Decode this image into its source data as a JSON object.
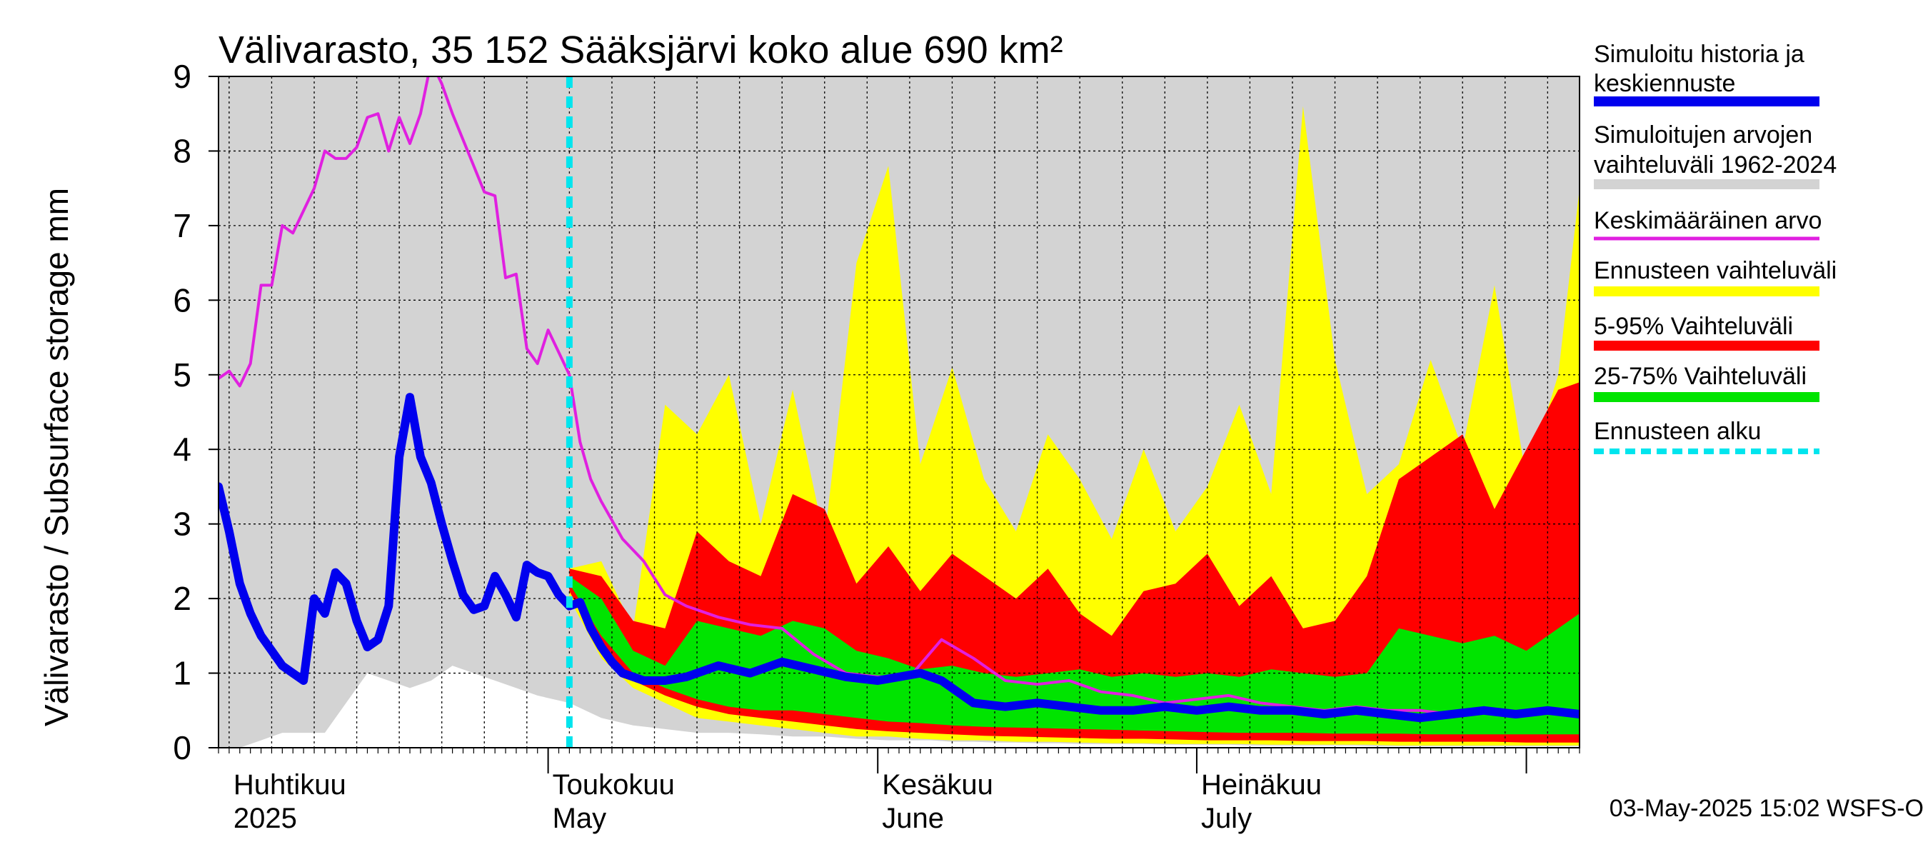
{
  "chart_data": {
    "type": "area",
    "title": "Välivarasto, 35 152 Sääksjärvi koko alue 690 km²",
    "ylabel": "Välivarasto / Subsurface storage  mm",
    "ylim": [
      0,
      9
    ],
    "yticks": [
      "0",
      "1",
      "2",
      "3",
      "4",
      "5",
      "6",
      "7",
      "8",
      "9"
    ],
    "xlim": [
      "2025-03-31",
      "2025-08-06"
    ],
    "grid": true,
    "months": [
      {
        "label1": "Huhtikuu",
        "label2": "2025",
        "start": "2025-04-01"
      },
      {
        "label1": "Toukokuu",
        "label2": "May",
        "start": "2025-05-01"
      },
      {
        "label1": "Kesäkuu",
        "label2": "June",
        "start": "2025-06-01"
      },
      {
        "label1": "Heinäkuu",
        "label2": "July",
        "start": "2025-07-01"
      }
    ],
    "month_ends": [
      "2025-05-01",
      "2025-06-01",
      "2025-07-01",
      "2025-08-01"
    ],
    "forecast_start": "2025-05-03",
    "series": [
      {
        "name": "Simuloitujen arvojen vaihteluväli 1962-2024",
        "color": "#d3d3d3",
        "kind": "band",
        "x": [
          "2025-03-31",
          "2025-04-02",
          "2025-04-04",
          "2025-04-06",
          "2025-04-08",
          "2025-04-10",
          "2025-04-12",
          "2025-04-14",
          "2025-04-16",
          "2025-04-18",
          "2025-04-20",
          "2025-04-22",
          "2025-04-24",
          "2025-04-26",
          "2025-04-28",
          "2025-04-30",
          "2025-05-03",
          "2025-05-06",
          "2025-05-09",
          "2025-05-12",
          "2025-05-15",
          "2025-05-18",
          "2025-05-21",
          "2025-05-24",
          "2025-05-27",
          "2025-05-30",
          "2025-06-02",
          "2025-06-04",
          "2025-06-06",
          "2025-06-08",
          "2025-06-10",
          "2025-06-12",
          "2025-06-14",
          "2025-06-16",
          "2025-06-18",
          "2025-06-20",
          "2025-06-22",
          "2025-06-24",
          "2025-06-26",
          "2025-06-28",
          "2025-06-30",
          "2025-07-02",
          "2025-07-04",
          "2025-07-06",
          "2025-07-08",
          "2025-07-10",
          "2025-07-12",
          "2025-07-14",
          "2025-07-16",
          "2025-07-18",
          "2025-07-20",
          "2025-07-22",
          "2025-07-24",
          "2025-07-26",
          "2025-07-28",
          "2025-07-30",
          "2025-08-01",
          "2025-08-03",
          "2025-08-05",
          "2025-08-06"
        ],
        "upper": [
          9,
          9,
          9,
          9,
          9,
          9,
          9,
          9,
          9,
          9,
          9,
          9,
          9,
          9,
          9,
          9,
          9,
          9,
          9,
          9,
          9,
          9,
          9,
          9,
          9,
          9,
          9,
          9,
          9,
          9,
          9,
          9,
          9,
          9,
          9,
          9,
          9,
          9,
          9,
          9,
          9,
          9,
          9,
          9,
          9,
          9,
          9,
          9,
          9,
          9,
          9,
          9,
          9,
          9,
          9,
          9,
          9,
          9,
          9,
          9
        ],
        "lower": [
          0.0,
          0.0,
          0.1,
          0.2,
          0.2,
          0.2,
          0.6,
          1.0,
          0.9,
          0.8,
          0.9,
          1.1,
          1.0,
          0.9,
          0.8,
          0.7,
          0.6,
          0.4,
          0.3,
          0.25,
          0.2,
          0.2,
          0.18,
          0.15,
          0.15,
          0.12,
          0.1,
          0.1,
          0.1,
          0.08,
          0.08,
          0.07,
          0.07,
          0.06,
          0.06,
          0.05,
          0.05,
          0.05,
          0.05,
          0.04,
          0.04,
          0.04,
          0.04,
          0.03,
          0.03,
          0.03,
          0.03,
          0.03,
          0.03,
          0.02,
          0.02,
          0.02,
          0.02,
          0.02,
          0.02,
          0.02,
          0.02,
          0.02,
          0.02,
          0.02
        ]
      },
      {
        "name": "Ennusteen vaihteluväli",
        "color": "#ffff00",
        "kind": "band",
        "x": [
          "2025-05-03",
          "2025-05-06",
          "2025-05-09",
          "2025-05-12",
          "2025-05-15",
          "2025-05-18",
          "2025-05-21",
          "2025-05-24",
          "2025-05-27",
          "2025-05-30",
          "2025-06-02",
          "2025-06-05",
          "2025-06-08",
          "2025-06-11",
          "2025-06-14",
          "2025-06-17",
          "2025-06-20",
          "2025-06-23",
          "2025-06-26",
          "2025-06-29",
          "2025-07-02",
          "2025-07-05",
          "2025-07-08",
          "2025-07-11",
          "2025-07-14",
          "2025-07-17",
          "2025-07-20",
          "2025-07-23",
          "2025-07-26",
          "2025-07-29",
          "2025-08-01",
          "2025-08-04",
          "2025-08-06"
        ],
        "upper": [
          2.4,
          2.5,
          1.6,
          4.6,
          4.2,
          5.0,
          3.0,
          4.8,
          2.8,
          6.5,
          7.8,
          3.8,
          5.1,
          3.6,
          2.9,
          4.2,
          3.6,
          2.8,
          4.0,
          2.9,
          3.5,
          4.6,
          3.4,
          8.6,
          5.2,
          3.4,
          3.8,
          5.2,
          4.0,
          6.2,
          3.6,
          5.0,
          7.5
        ],
        "lower": [
          2.0,
          1.2,
          0.8,
          0.6,
          0.4,
          0.35,
          0.3,
          0.25,
          0.2,
          0.15,
          0.15,
          0.12,
          0.1,
          0.1,
          0.08,
          0.08,
          0.07,
          0.06,
          0.06,
          0.05,
          0.05,
          0.05,
          0.04,
          0.04,
          0.04,
          0.04,
          0.03,
          0.03,
          0.03,
          0.03,
          0.03,
          0.03,
          0.03
        ]
      },
      {
        "name": "5-95% Vaihteluväli",
        "color": "#ff0000",
        "kind": "band",
        "x": [
          "2025-05-03",
          "2025-05-06",
          "2025-05-09",
          "2025-05-12",
          "2025-05-15",
          "2025-05-18",
          "2025-05-21",
          "2025-05-24",
          "2025-05-27",
          "2025-05-30",
          "2025-06-02",
          "2025-06-05",
          "2025-06-08",
          "2025-06-11",
          "2025-06-14",
          "2025-06-17",
          "2025-06-20",
          "2025-06-23",
          "2025-06-26",
          "2025-06-29",
          "2025-07-02",
          "2025-07-05",
          "2025-07-08",
          "2025-07-11",
          "2025-07-14",
          "2025-07-17",
          "2025-07-20",
          "2025-07-23",
          "2025-07-26",
          "2025-07-29",
          "2025-08-01",
          "2025-08-04",
          "2025-08-06"
        ],
        "upper": [
          2.4,
          2.3,
          1.7,
          1.6,
          2.9,
          2.5,
          2.3,
          3.4,
          3.2,
          2.2,
          2.7,
          2.1,
          2.6,
          2.3,
          2.0,
          2.4,
          1.8,
          1.5,
          2.1,
          2.2,
          2.6,
          1.9,
          2.3,
          1.6,
          1.7,
          2.3,
          3.6,
          3.9,
          4.2,
          3.2,
          4.0,
          4.8,
          4.9
        ],
        "lower": [
          2.1,
          1.3,
          0.9,
          0.7,
          0.55,
          0.45,
          0.4,
          0.35,
          0.3,
          0.25,
          0.22,
          0.2,
          0.18,
          0.16,
          0.15,
          0.14,
          0.13,
          0.12,
          0.12,
          0.11,
          0.1,
          0.1,
          0.1,
          0.09,
          0.09,
          0.09,
          0.08,
          0.08,
          0.08,
          0.08,
          0.07,
          0.07,
          0.07
        ]
      },
      {
        "name": "25-75% Vaihteluväli",
        "color": "#00e400",
        "kind": "band",
        "x": [
          "2025-05-03",
          "2025-05-06",
          "2025-05-09",
          "2025-05-12",
          "2025-05-15",
          "2025-05-18",
          "2025-05-21",
          "2025-05-24",
          "2025-05-27",
          "2025-05-30",
          "2025-06-02",
          "2025-06-05",
          "2025-06-08",
          "2025-06-11",
          "2025-06-14",
          "2025-06-17",
          "2025-06-20",
          "2025-06-23",
          "2025-06-26",
          "2025-06-29",
          "2025-07-02",
          "2025-07-05",
          "2025-07-08",
          "2025-07-11",
          "2025-07-14",
          "2025-07-17",
          "2025-07-20",
          "2025-07-23",
          "2025-07-26",
          "2025-07-29",
          "2025-08-01",
          "2025-08-04",
          "2025-08-06"
        ],
        "upper": [
          2.3,
          2.0,
          1.3,
          1.1,
          1.7,
          1.6,
          1.5,
          1.7,
          1.6,
          1.3,
          1.2,
          1.05,
          1.1,
          1.0,
          0.95,
          1.0,
          1.05,
          0.95,
          1.0,
          0.95,
          1.0,
          0.95,
          1.05,
          1.0,
          0.95,
          1.0,
          1.6,
          1.5,
          1.4,
          1.5,
          1.3,
          1.6,
          1.8
        ],
        "lower": [
          2.2,
          1.5,
          1.0,
          0.8,
          0.65,
          0.55,
          0.5,
          0.5,
          0.45,
          0.4,
          0.35,
          0.33,
          0.3,
          0.28,
          0.27,
          0.26,
          0.25,
          0.24,
          0.23,
          0.22,
          0.21,
          0.2,
          0.2,
          0.2,
          0.19,
          0.19,
          0.19,
          0.18,
          0.18,
          0.18,
          0.18,
          0.18,
          0.18
        ]
      },
      {
        "name": "Keskimääräinen arvo",
        "color": "#e020e0",
        "kind": "line",
        "x": [
          "2025-03-31",
          "2025-04-01",
          "2025-04-02",
          "2025-04-03",
          "2025-04-04",
          "2025-04-05",
          "2025-04-06",
          "2025-04-07",
          "2025-04-08",
          "2025-04-09",
          "2025-04-10",
          "2025-04-11",
          "2025-04-12",
          "2025-04-13",
          "2025-04-14",
          "2025-04-15",
          "2025-04-16",
          "2025-04-17",
          "2025-04-18",
          "2025-04-19",
          "2025-04-20",
          "2025-04-21",
          "2025-04-22",
          "2025-04-23",
          "2025-04-24",
          "2025-04-25",
          "2025-04-26",
          "2025-04-27",
          "2025-04-28",
          "2025-04-29",
          "2025-04-30",
          "2025-05-01",
          "2025-05-02",
          "2025-05-03",
          "2025-05-04",
          "2025-05-05",
          "2025-05-06",
          "2025-05-08",
          "2025-05-10",
          "2025-05-12",
          "2025-05-14",
          "2025-05-17",
          "2025-05-20",
          "2025-05-23",
          "2025-05-26",
          "2025-05-29",
          "2025-06-01",
          "2025-06-04",
          "2025-06-07",
          "2025-06-10",
          "2025-06-13",
          "2025-06-16",
          "2025-06-19",
          "2025-06-22",
          "2025-06-25",
          "2025-06-28",
          "2025-07-01",
          "2025-07-04",
          "2025-07-07",
          "2025-07-10",
          "2025-07-13",
          "2025-07-16",
          "2025-07-19",
          "2025-07-22",
          "2025-07-25",
          "2025-07-28",
          "2025-07-31",
          "2025-08-03",
          "2025-08-06"
        ],
        "values": [
          4.95,
          5.05,
          4.85,
          5.15,
          6.2,
          6.2,
          7.0,
          6.9,
          7.2,
          7.5,
          8.0,
          7.9,
          7.9,
          8.05,
          8.45,
          8.5,
          8.0,
          8.45,
          8.1,
          8.5,
          9.2,
          8.9,
          8.5,
          8.15,
          7.8,
          7.45,
          7.4,
          6.3,
          6.35,
          5.35,
          5.15,
          5.6,
          5.3,
          5.0,
          4.1,
          3.6,
          3.3,
          2.8,
          2.5,
          2.05,
          1.9,
          1.75,
          1.65,
          1.6,
          1.25,
          1.0,
          0.95,
          0.95,
          1.45,
          1.2,
          0.9,
          0.85,
          0.9,
          0.75,
          0.7,
          0.6,
          0.65,
          0.7,
          0.6,
          0.55,
          0.5,
          0.55,
          0.5,
          0.5,
          0.45,
          0.5,
          0.45,
          0.5,
          0.45
        ]
      },
      {
        "name": "Simuloitu historia ja keskiennuste",
        "color": "#0000ee",
        "kind": "line",
        "x": [
          "2025-03-31",
          "2025-04-01",
          "2025-04-02",
          "2025-04-03",
          "2025-04-04",
          "2025-04-05",
          "2025-04-06",
          "2025-04-07",
          "2025-04-08",
          "2025-04-09",
          "2025-04-10",
          "2025-04-11",
          "2025-04-12",
          "2025-04-13",
          "2025-04-14",
          "2025-04-15",
          "2025-04-16",
          "2025-04-17",
          "2025-04-18",
          "2025-04-19",
          "2025-04-20",
          "2025-04-21",
          "2025-04-22",
          "2025-04-23",
          "2025-04-24",
          "2025-04-25",
          "2025-04-26",
          "2025-04-27",
          "2025-04-28",
          "2025-04-29",
          "2025-04-30",
          "2025-05-01",
          "2025-05-02",
          "2025-05-03",
          "2025-05-04",
          "2025-05-05",
          "2025-05-06",
          "2025-05-07",
          "2025-05-08",
          "2025-05-10",
          "2025-05-12",
          "2025-05-14",
          "2025-05-17",
          "2025-05-20",
          "2025-05-23",
          "2025-05-26",
          "2025-05-29",
          "2025-06-01",
          "2025-06-03",
          "2025-06-05",
          "2025-06-07",
          "2025-06-10",
          "2025-06-13",
          "2025-06-16",
          "2025-06-19",
          "2025-06-22",
          "2025-06-25",
          "2025-06-28",
          "2025-07-01",
          "2025-07-04",
          "2025-07-07",
          "2025-07-10",
          "2025-07-13",
          "2025-07-16",
          "2025-07-19",
          "2025-07-22",
          "2025-07-25",
          "2025-07-28",
          "2025-07-31",
          "2025-08-03",
          "2025-08-06"
        ],
        "values": [
          3.5,
          2.9,
          2.2,
          1.8,
          1.5,
          1.3,
          1.1,
          1.0,
          0.9,
          2.0,
          1.8,
          2.35,
          2.2,
          1.7,
          1.35,
          1.45,
          1.9,
          3.9,
          4.7,
          3.9,
          3.55,
          3.0,
          2.5,
          2.05,
          1.85,
          1.9,
          2.3,
          2.05,
          1.75,
          2.45,
          2.35,
          2.3,
          2.05,
          1.9,
          1.95,
          1.6,
          1.35,
          1.15,
          1.0,
          0.9,
          0.9,
          0.95,
          1.1,
          1.0,
          1.15,
          1.05,
          0.95,
          0.9,
          0.95,
          1.0,
          0.9,
          0.6,
          0.55,
          0.6,
          0.55,
          0.5,
          0.5,
          0.55,
          0.5,
          0.55,
          0.5,
          0.5,
          0.45,
          0.5,
          0.45,
          0.4,
          0.45,
          0.5,
          0.45,
          0.5,
          0.45
        ]
      }
    ],
    "legend": {
      "placement": "right",
      "items": [
        {
          "label": "Simuloitu historia ja keskiennuste",
          "color": "#0000ee",
          "style": "thick"
        },
        {
          "label": "Simuloitujen arvojen vaihteluväli 1962-2024",
          "color": "#d3d3d3",
          "style": "thick"
        },
        {
          "label": "Keskimääräinen arvo",
          "color": "#e020e0",
          "style": "thin"
        },
        {
          "label": "Ennusteen vaihteluväli",
          "color": "#ffff00",
          "style": "thick"
        },
        {
          "label": "5-95% Vaihteluväli",
          "color": "#ff0000",
          "style": "thick"
        },
        {
          "label": "25-75% Vaihteluväli",
          "color": "#00e400",
          "style": "thick"
        },
        {
          "label": "Ennusteen alku",
          "color": "#00e5ee",
          "style": "dotted"
        }
      ]
    },
    "footer": "03-May-2025 15:02 WSFS-O"
  }
}
